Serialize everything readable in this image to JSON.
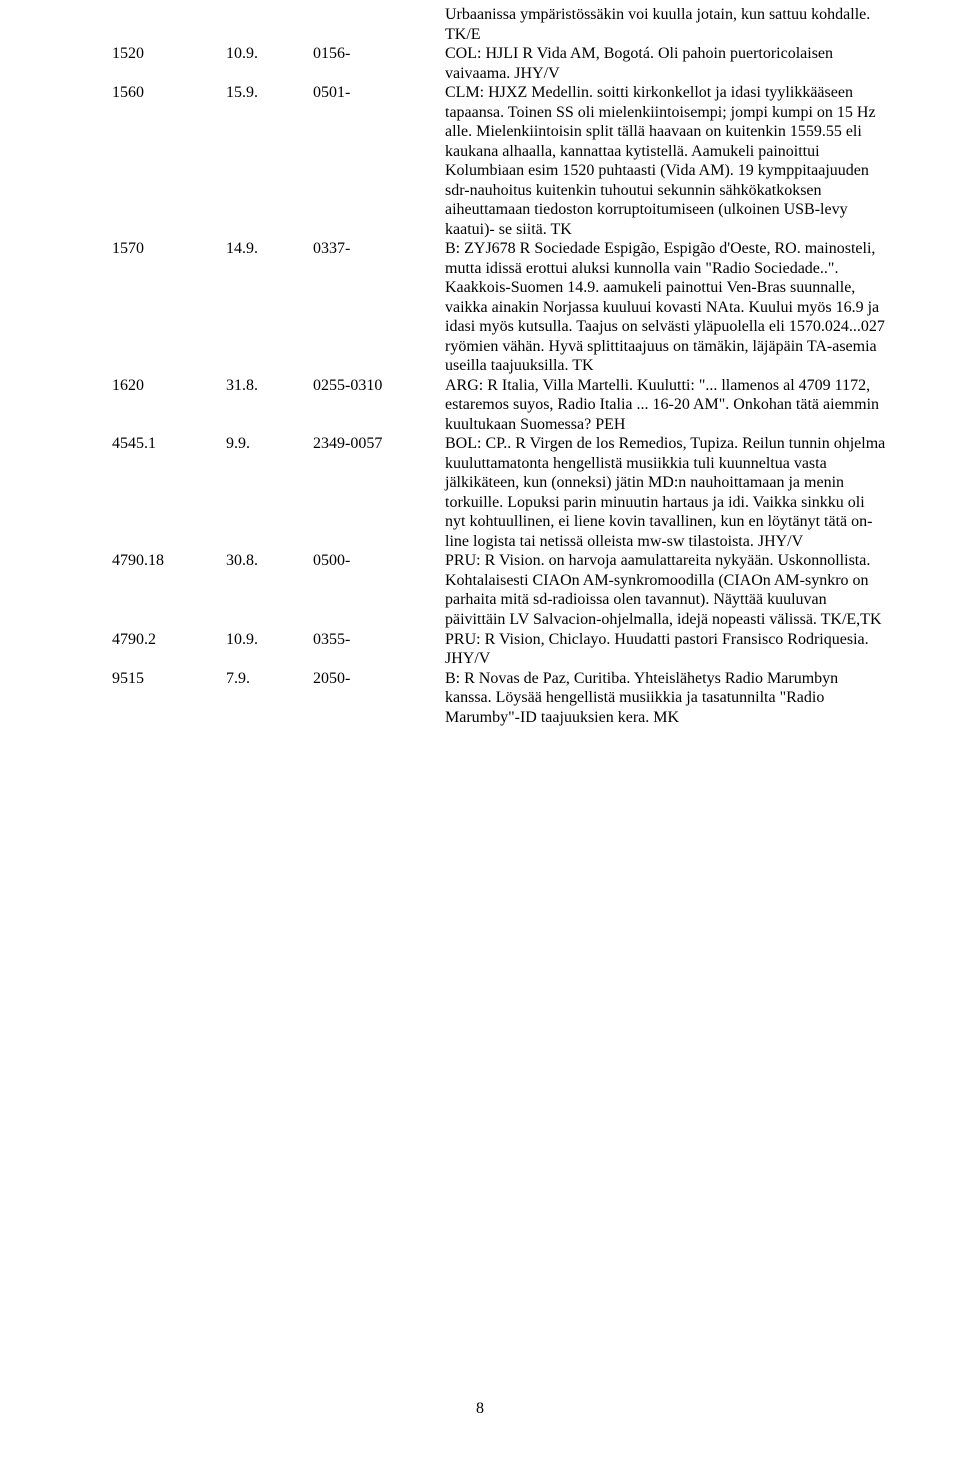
{
  "page_number": "8",
  "entries": [
    {
      "freq": "",
      "date": "",
      "time": "",
      "body": "Urbaanissa ympäristössäkin voi kuulla jotain, kun sattuu kohdalle. TK/E"
    },
    {
      "freq": "1520",
      "date": "10.9.",
      "time": "0156-",
      "body": "COL: HJLI R Vida AM, Bogotá. Oli pahoin puertoricolaisen vaivaama. JHY/V"
    },
    {
      "freq": "1560",
      "date": "15.9.",
      "time": "0501-",
      "body": "CLM: HJXZ Medellin. soitti kirkonkellot ja idasi tyylikkääseen tapaansa. Toinen SS oli mielenkiintoisempi; jompi kumpi on 15 Hz alle. Mielenkiintoisin split tällä haavaan on kuitenkin 1559.55 eli kaukana alhaalla, kannattaa kytistellä. Aamukeli painoittui Kolumbiaan esim 1520 puhtaasti (Vida AM). 19 kymppitaajuuden sdr-nauhoitus kuitenkin tuhoutui sekunnin sähkökatkoksen aiheuttamaan tiedoston korruptoitumiseen (ulkoinen USB-levy kaatui)- se siitä. TK"
    },
    {
      "freq": "1570",
      "date": "14.9.",
      "time": "0337-",
      "body": "B: ZYJ678 R Sociedade Espigão, Espigão d'Oeste, RO. mainosteli, mutta idissä erottui aluksi kunnolla vain \"Radio Sociedade..\". Kaakkois-Suomen 14.9. aamukeli painottui Ven-Bras suunnalle, vaikka ainakin Norjassa kuuluui kovasti NAta. Kuului myös 16.9 ja idasi myös kutsulla. Taajus on selvästi yläpuolella eli 1570.024...027 ryömien vähän. Hyvä splittitaajuus on tämäkin, läjäpäin TA-asemia useilla taajuuksilla. TK"
    },
    {
      "freq": "1620",
      "date": "31.8.",
      "time": "0255-0310",
      "body": "ARG: R Italia, Villa Martelli. Kuulutti: \"... llamenos al 4709 1172, estaremos suyos, Radio Italia ... 16-20 AM\". Onkohan tätä aiemmin kuultukaan Suomessa? PEH"
    },
    {
      "freq": "4545.1",
      "date": "9.9.",
      "time": "2349-0057",
      "body": "BOL: CP.. R Virgen de los Remedios, Tupiza. Reilun tunnin ohjelma kuuluttamatonta hengellistä musiikkia tuli kuunneltua vasta jälkikäteen, kun (onneksi) jätin MD:n nauhoittamaan ja menin torkuille. Lopuksi parin minuutin hartaus ja idi. Vaikka sinkku oli nyt kohtuullinen, ei liene kovin tavallinen, kun en löytänyt tätä on-line logista tai netissä olleista mw-sw tilastoista. JHY/V"
    },
    {
      "freq": "4790.18",
      "date": "30.8.",
      "time": "0500-",
      "body": "PRU: R Vision. on harvoja aamulattareita nykyään. Uskonnollista. Kohtalaisesti CIAOn AM-synkromoodilla (CIAOn AM-synkro on parhaita mitä sd-radioissa olen tavannut). Näyttää kuuluvan päivittäin LV Salvacion-ohjelmalla, idejä nopeasti välissä. TK/E,TK"
    },
    {
      "freq": "4790.2",
      "date": "10.9.",
      "time": "0355-",
      "body": "PRU: R Vision, Chiclayo. Huudatti pastori Fransisco Rodriquesia. JHY/V"
    },
    {
      "freq": "9515",
      "date": "7.9.",
      "time": "2050-",
      "body": "B: R Novas de Paz, Curitiba. Yhteislähetys Radio Marumbyn kanssa. Löysää hengellistä musiikkia ja tasatunnilta \"Radio Marumby\"-ID taajuuksien kera. MK"
    }
  ]
}
